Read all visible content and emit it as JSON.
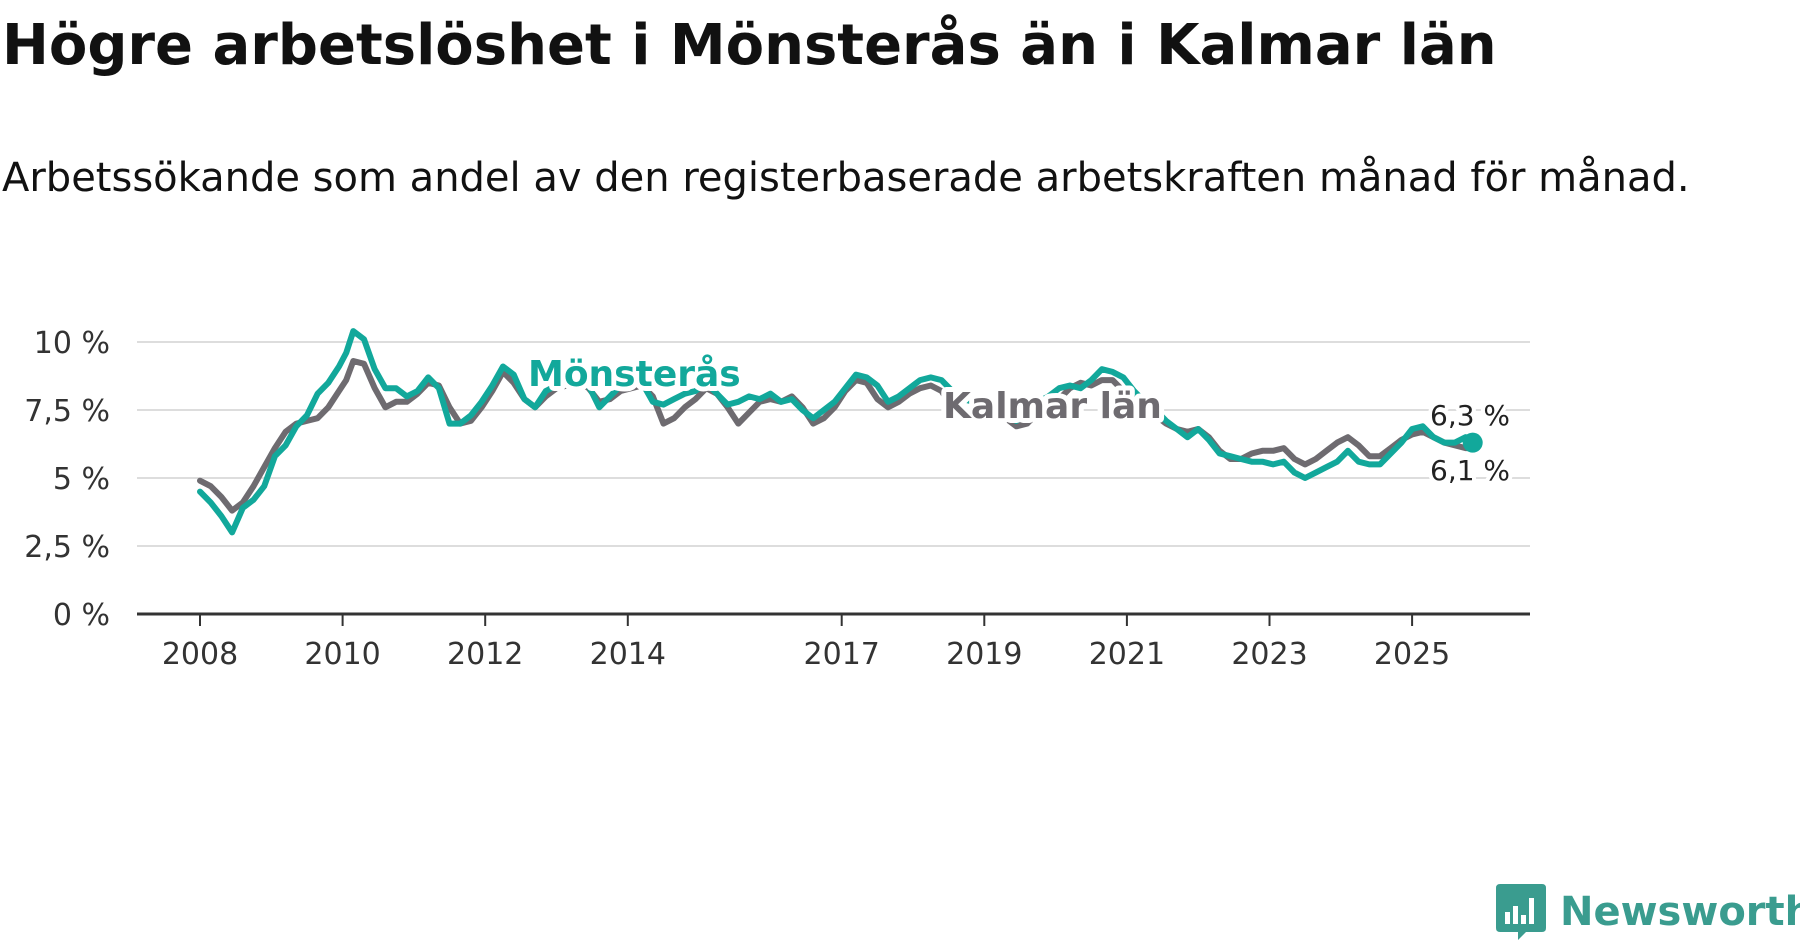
{
  "title": "Högre arbetslöshet i Mönsterås än i Kalmar län",
  "subtitle": "Arbetssökande som andel av den registerbaserade arbetskraften månad för månad.",
  "brand": {
    "name": "Newsworthy",
    "color": "#3a9c8f"
  },
  "colors": {
    "monsteras": "#12a89b",
    "kalmar": "#6e6b70",
    "grid": "#dddddd",
    "axis": "#333333"
  },
  "chart_data": {
    "type": "line",
    "title": "Högre arbetslöshet i Mönsterås än i Kalmar län",
    "xlabel": "",
    "ylabel": "",
    "x_ticks": [
      2008,
      2010,
      2012,
      2014,
      2017,
      2019,
      2021,
      2023,
      2025
    ],
    "y_ticks": [
      0,
      2.5,
      5,
      7.5,
      10
    ],
    "y_tick_labels": [
      "0 %",
      "2,5 %",
      "5 %",
      "7,5 %",
      "10 %"
    ],
    "ylim": [
      0,
      10
    ],
    "xlim": [
      2007.6,
      2026.7
    ],
    "series": [
      {
        "name": "Kalmar län",
        "label": "Kalmar län",
        "end_value_label": "6,1 %",
        "points": [
          [
            2008.0,
            4.9
          ],
          [
            2008.15,
            4.7
          ],
          [
            2008.3,
            4.3
          ],
          [
            2008.45,
            3.8
          ],
          [
            2008.6,
            4.1
          ],
          [
            2008.75,
            4.7
          ],
          [
            2008.9,
            5.4
          ],
          [
            2009.05,
            6.1
          ],
          [
            2009.2,
            6.7
          ],
          [
            2009.35,
            7.0
          ],
          [
            2009.5,
            7.1
          ],
          [
            2009.65,
            7.2
          ],
          [
            2009.8,
            7.6
          ],
          [
            2009.95,
            8.2
          ],
          [
            2010.05,
            8.6
          ],
          [
            2010.15,
            9.3
          ],
          [
            2010.3,
            9.2
          ],
          [
            2010.45,
            8.3
          ],
          [
            2010.6,
            7.6
          ],
          [
            2010.75,
            7.8
          ],
          [
            2010.9,
            7.8
          ],
          [
            2011.05,
            8.1
          ],
          [
            2011.2,
            8.5
          ],
          [
            2011.35,
            8.4
          ],
          [
            2011.5,
            7.6
          ],
          [
            2011.65,
            7.0
          ],
          [
            2011.8,
            7.1
          ],
          [
            2011.95,
            7.6
          ],
          [
            2012.1,
            8.2
          ],
          [
            2012.25,
            8.9
          ],
          [
            2012.4,
            8.5
          ],
          [
            2012.55,
            7.9
          ],
          [
            2012.7,
            7.6
          ],
          [
            2012.85,
            8.0
          ],
          [
            2013.0,
            8.3
          ],
          [
            2013.15,
            8.4
          ],
          [
            2013.3,
            8.6
          ],
          [
            2013.45,
            8.3
          ],
          [
            2013.6,
            7.8
          ],
          [
            2013.75,
            7.9
          ],
          [
            2013.9,
            8.2
          ],
          [
            2014.05,
            8.3
          ],
          [
            2014.2,
            8.4
          ],
          [
            2014.35,
            8.0
          ],
          [
            2014.5,
            7.0
          ],
          [
            2014.65,
            7.2
          ],
          [
            2014.8,
            7.6
          ],
          [
            2014.95,
            7.9
          ],
          [
            2015.1,
            8.3
          ],
          [
            2015.25,
            8.1
          ],
          [
            2015.4,
            7.6
          ],
          [
            2015.55,
            7.0
          ],
          [
            2015.7,
            7.4
          ],
          [
            2015.85,
            7.8
          ],
          [
            2016.0,
            7.9
          ],
          [
            2016.15,
            7.8
          ],
          [
            2016.3,
            8.0
          ],
          [
            2016.45,
            7.6
          ],
          [
            2016.6,
            7.0
          ],
          [
            2016.75,
            7.2
          ],
          [
            2016.9,
            7.6
          ],
          [
            2017.05,
            8.2
          ],
          [
            2017.2,
            8.6
          ],
          [
            2017.35,
            8.5
          ],
          [
            2017.5,
            7.9
          ],
          [
            2017.65,
            7.6
          ],
          [
            2017.8,
            7.8
          ],
          [
            2017.95,
            8.1
          ],
          [
            2018.1,
            8.3
          ],
          [
            2018.25,
            8.4
          ],
          [
            2018.4,
            8.2
          ],
          [
            2018.55,
            7.6
          ],
          [
            2018.7,
            7.3
          ],
          [
            2018.85,
            7.5
          ],
          [
            2019.0,
            7.7
          ],
          [
            2019.15,
            7.6
          ],
          [
            2019.3,
            7.2
          ],
          [
            2019.45,
            6.9
          ],
          [
            2019.6,
            7.0
          ],
          [
            2019.75,
            7.4
          ],
          [
            2019.9,
            7.6
          ],
          [
            2020.05,
            7.9
          ],
          [
            2020.2,
            8.3
          ],
          [
            2020.35,
            8.5
          ],
          [
            2020.5,
            8.4
          ],
          [
            2020.65,
            8.6
          ],
          [
            2020.8,
            8.6
          ],
          [
            2020.95,
            8.2
          ],
          [
            2021.1,
            7.9
          ],
          [
            2021.25,
            7.6
          ],
          [
            2021.4,
            7.3
          ],
          [
            2021.55,
            7.0
          ],
          [
            2021.7,
            6.8
          ],
          [
            2021.85,
            6.7
          ],
          [
            2022.0,
            6.8
          ],
          [
            2022.15,
            6.5
          ],
          [
            2022.3,
            6.0
          ],
          [
            2022.45,
            5.7
          ],
          [
            2022.6,
            5.7
          ],
          [
            2022.75,
            5.9
          ],
          [
            2022.9,
            6.0
          ],
          [
            2023.05,
            6.0
          ],
          [
            2023.2,
            6.1
          ],
          [
            2023.35,
            5.7
          ],
          [
            2023.5,
            5.5
          ],
          [
            2023.65,
            5.7
          ],
          [
            2023.8,
            6.0
          ],
          [
            2023.95,
            6.3
          ],
          [
            2024.1,
            6.5
          ],
          [
            2024.25,
            6.2
          ],
          [
            2024.4,
            5.8
          ],
          [
            2024.55,
            5.8
          ],
          [
            2024.7,
            6.1
          ],
          [
            2024.85,
            6.4
          ],
          [
            2025.0,
            6.6
          ],
          [
            2025.15,
            6.7
          ],
          [
            2025.3,
            6.5
          ],
          [
            2025.45,
            6.3
          ],
          [
            2025.6,
            6.2
          ],
          [
            2025.75,
            6.1
          ],
          [
            2025.85,
            6.1
          ]
        ]
      },
      {
        "name": "Mönsterås",
        "label": "Mönsterås",
        "end_value_label": "6,3 %",
        "points": [
          [
            2008.0,
            4.5
          ],
          [
            2008.15,
            4.1
          ],
          [
            2008.3,
            3.6
          ],
          [
            2008.45,
            3.0
          ],
          [
            2008.6,
            3.9
          ],
          [
            2008.75,
            4.2
          ],
          [
            2008.9,
            4.7
          ],
          [
            2009.05,
            5.8
          ],
          [
            2009.2,
            6.2
          ],
          [
            2009.35,
            6.9
          ],
          [
            2009.5,
            7.3
          ],
          [
            2009.65,
            8.1
          ],
          [
            2009.8,
            8.5
          ],
          [
            2009.95,
            9.1
          ],
          [
            2010.05,
            9.6
          ],
          [
            2010.15,
            10.4
          ],
          [
            2010.3,
            10.1
          ],
          [
            2010.45,
            9.0
          ],
          [
            2010.6,
            8.3
          ],
          [
            2010.75,
            8.3
          ],
          [
            2010.9,
            8.0
          ],
          [
            2011.05,
            8.2
          ],
          [
            2011.2,
            8.7
          ],
          [
            2011.35,
            8.3
          ],
          [
            2011.5,
            7.0
          ],
          [
            2011.65,
            7.0
          ],
          [
            2011.8,
            7.3
          ],
          [
            2011.95,
            7.8
          ],
          [
            2012.1,
            8.4
          ],
          [
            2012.25,
            9.1
          ],
          [
            2012.4,
            8.8
          ],
          [
            2012.55,
            7.9
          ],
          [
            2012.7,
            7.6
          ],
          [
            2012.85,
            8.2
          ],
          [
            2013.0,
            8.4
          ],
          [
            2013.15,
            8.6
          ],
          [
            2013.3,
            8.8
          ],
          [
            2013.45,
            8.4
          ],
          [
            2013.6,
            7.6
          ],
          [
            2013.75,
            8.0
          ],
          [
            2013.9,
            8.4
          ],
          [
            2014.05,
            8.6
          ],
          [
            2014.2,
            8.5
          ],
          [
            2014.35,
            7.8
          ],
          [
            2014.5,
            7.7
          ],
          [
            2014.65,
            7.9
          ],
          [
            2014.8,
            8.1
          ],
          [
            2014.95,
            8.2
          ],
          [
            2015.1,
            8.5
          ],
          [
            2015.25,
            8.1
          ],
          [
            2015.4,
            7.7
          ],
          [
            2015.55,
            7.8
          ],
          [
            2015.7,
            8.0
          ],
          [
            2015.85,
            7.9
          ],
          [
            2016.0,
            8.1
          ],
          [
            2016.15,
            7.8
          ],
          [
            2016.3,
            7.9
          ],
          [
            2016.45,
            7.5
          ],
          [
            2016.6,
            7.2
          ],
          [
            2016.75,
            7.5
          ],
          [
            2016.9,
            7.8
          ],
          [
            2017.05,
            8.3
          ],
          [
            2017.2,
            8.8
          ],
          [
            2017.35,
            8.7
          ],
          [
            2017.5,
            8.4
          ],
          [
            2017.65,
            7.8
          ],
          [
            2017.8,
            8.0
          ],
          [
            2017.95,
            8.3
          ],
          [
            2018.1,
            8.6
          ],
          [
            2018.25,
            8.7
          ],
          [
            2018.4,
            8.6
          ],
          [
            2018.55,
            8.2
          ],
          [
            2018.7,
            7.9
          ],
          [
            2018.85,
            7.8
          ],
          [
            2019.0,
            7.8
          ],
          [
            2019.15,
            7.6
          ],
          [
            2019.3,
            7.3
          ],
          [
            2019.45,
            7.1
          ],
          [
            2019.6,
            7.4
          ],
          [
            2019.75,
            7.8
          ],
          [
            2019.9,
            8.0
          ],
          [
            2020.05,
            8.3
          ],
          [
            2020.2,
            8.4
          ],
          [
            2020.35,
            8.3
          ],
          [
            2020.5,
            8.6
          ],
          [
            2020.65,
            9.0
          ],
          [
            2020.8,
            8.9
          ],
          [
            2020.95,
            8.7
          ],
          [
            2021.1,
            8.2
          ],
          [
            2021.25,
            7.8
          ],
          [
            2021.4,
            7.5
          ],
          [
            2021.55,
            7.1
          ],
          [
            2021.7,
            6.8
          ],
          [
            2021.85,
            6.5
          ],
          [
            2022.0,
            6.8
          ],
          [
            2022.15,
            6.4
          ],
          [
            2022.3,
            5.9
          ],
          [
            2022.45,
            5.8
          ],
          [
            2022.6,
            5.7
          ],
          [
            2022.75,
            5.6
          ],
          [
            2022.9,
            5.6
          ],
          [
            2023.05,
            5.5
          ],
          [
            2023.2,
            5.6
          ],
          [
            2023.35,
            5.2
          ],
          [
            2023.5,
            5.0
          ],
          [
            2023.65,
            5.2
          ],
          [
            2023.8,
            5.4
          ],
          [
            2023.95,
            5.6
          ],
          [
            2024.1,
            6.0
          ],
          [
            2024.25,
            5.6
          ],
          [
            2024.4,
            5.5
          ],
          [
            2024.55,
            5.5
          ],
          [
            2024.7,
            5.9
          ],
          [
            2024.85,
            6.3
          ],
          [
            2025.0,
            6.8
          ],
          [
            2025.15,
            6.9
          ],
          [
            2025.3,
            6.5
          ],
          [
            2025.45,
            6.3
          ],
          [
            2025.6,
            6.3
          ],
          [
            2025.75,
            6.5
          ],
          [
            2025.85,
            6.3
          ]
        ]
      }
    ]
  }
}
